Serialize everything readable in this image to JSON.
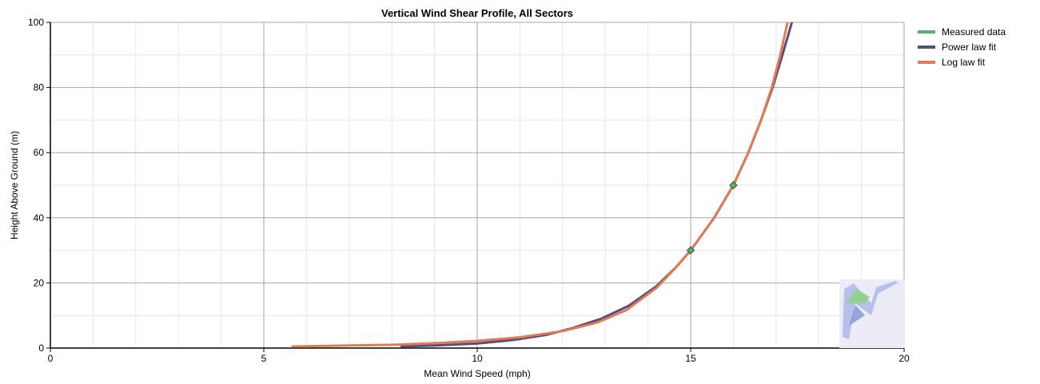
{
  "chart_data": {
    "type": "line",
    "title": "Vertical Wind Shear Profile, All Sectors",
    "xlabel": "Mean Wind Speed (mph)",
    "ylabel": "Height Above Ground (m)",
    "xlim": [
      0,
      20
    ],
    "ylim": [
      0,
      100
    ],
    "x_ticks": [
      0,
      5,
      10,
      15,
      20
    ],
    "y_ticks": [
      0,
      20,
      40,
      60,
      80,
      100
    ],
    "grid": true,
    "legend_position": "right",
    "series": [
      {
        "name": "Measured data",
        "color": "#5fae6a",
        "marker": "diamond",
        "points": [
          [
            15.0,
            30
          ],
          [
            16.0,
            50
          ]
        ]
      },
      {
        "name": "Power law fit",
        "color": "#5b4a7e",
        "points": [
          [
            8.2,
            0.5
          ],
          [
            9.0,
            0.8
          ],
          [
            10.0,
            1.4
          ],
          [
            10.85,
            2.5
          ],
          [
            11.6,
            4.0
          ],
          [
            12.2,
            6.0
          ],
          [
            12.9,
            9.0
          ],
          [
            13.55,
            13.0
          ],
          [
            14.2,
            19.0
          ],
          [
            14.67,
            25.0
          ],
          [
            15.0,
            30.0
          ],
          [
            15.55,
            40.0
          ],
          [
            16.0,
            50.0
          ],
          [
            16.35,
            60.0
          ],
          [
            16.65,
            70.0
          ],
          [
            16.92,
            80.0
          ],
          [
            17.15,
            90.0
          ],
          [
            17.37,
            100.0
          ]
        ]
      },
      {
        "name": "Log law fit",
        "color": "#e07b53",
        "points": [
          [
            5.65,
            0.5
          ],
          [
            7.0,
            0.8
          ],
          [
            8.0,
            1.0
          ],
          [
            9.0,
            1.5
          ],
          [
            10.0,
            2.2
          ],
          [
            11.0,
            3.3
          ],
          [
            12.0,
            5.2
          ],
          [
            12.8,
            7.8
          ],
          [
            13.5,
            11.7
          ],
          [
            14.2,
            18.5
          ],
          [
            14.6,
            24.0
          ],
          [
            15.0,
            30.0
          ],
          [
            15.55,
            40.0
          ],
          [
            16.0,
            50.0
          ],
          [
            16.35,
            60.0
          ],
          [
            16.65,
            70.0
          ],
          [
            16.9,
            80.0
          ],
          [
            17.1,
            90.0
          ],
          [
            17.27,
            100.0
          ]
        ]
      }
    ]
  }
}
